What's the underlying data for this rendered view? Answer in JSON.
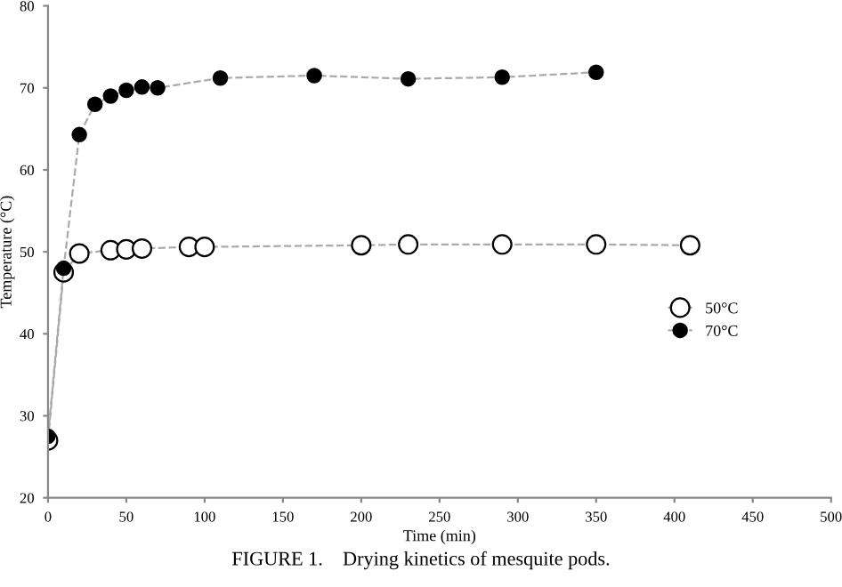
{
  "chart_data": {
    "type": "line",
    "xlabel": "Time (min)",
    "ylabel": "Temperature (°C)",
    "xlim": [
      0,
      500
    ],
    "xticks": [
      0,
      50,
      100,
      150,
      200,
      250,
      300,
      350,
      400,
      450,
      500
    ],
    "ylim": [
      20,
      80
    ],
    "yticks": [
      20,
      30,
      40,
      50,
      60,
      70,
      80
    ],
    "series": [
      {
        "name": "50°C",
        "color": "#ffffff",
        "x": [
          0,
          10,
          20,
          40,
          50,
          60,
          90,
          100,
          200,
          230,
          290,
          350,
          410
        ],
        "values": [
          27,
          47.5,
          49.8,
          50.2,
          50.3,
          50.4,
          50.6,
          50.6,
          50.8,
          50.9,
          50.9,
          50.9,
          50.8
        ]
      },
      {
        "name": "70°C",
        "color": "#000000",
        "x": [
          0,
          10,
          20,
          30,
          40,
          50,
          60,
          70,
          110,
          170,
          230,
          290,
          350
        ],
        "values": [
          27.5,
          48,
          64.3,
          68,
          69,
          69.7,
          70.1,
          70,
          71.2,
          71.5,
          71.1,
          71.3,
          71.9
        ]
      }
    ],
    "marker": "circle",
    "line_style": "dashed",
    "grid": false,
    "legend": "right",
    "annotations": [
      "FIGURE 1.    Drying kinetics of mesquite pods."
    ]
  }
}
